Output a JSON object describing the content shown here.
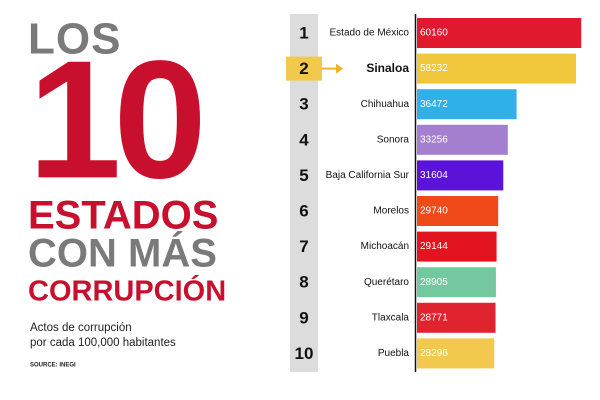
{
  "chart_data": {
    "type": "bar",
    "title_lines": [
      {
        "text": "LOS",
        "color": "#7a7a7a"
      },
      {
        "text": "10",
        "color": "#c8102e"
      },
      {
        "text": "ESTADOS",
        "color": "#c8102e"
      },
      {
        "text": "CON MÁS",
        "color": "#7a7a7a"
      },
      {
        "text": "CORRUPCIÓN",
        "color": "#c8102e"
      }
    ],
    "subtitle": [
      "Actos de corrupción",
      "por cada 100,000 habitantes"
    ],
    "source": "SOURCE: INEGI",
    "ranks": [
      1,
      2,
      3,
      4,
      5,
      6,
      7,
      8,
      9,
      10
    ],
    "highlight": "Sinaloa",
    "categories": [
      "Estado de México",
      "Sinaloa",
      "Chihuahua",
      "Sonora",
      "Baja California Sur",
      "Morelos",
      "Michoacán",
      "Querétaro",
      "Tlaxcala",
      "Puebla"
    ],
    "values": [
      60160,
      58232,
      36472,
      33256,
      31604,
      29740,
      29144,
      28905,
      28771,
      28296
    ],
    "colors": [
      "#e0192e",
      "#f0c63b",
      "#2fb0e8",
      "#a57fcf",
      "#5b12d9",
      "#f04a1b",
      "#e3131f",
      "#74c8a0",
      "#e0242f",
      "#f2c94c"
    ]
  }
}
